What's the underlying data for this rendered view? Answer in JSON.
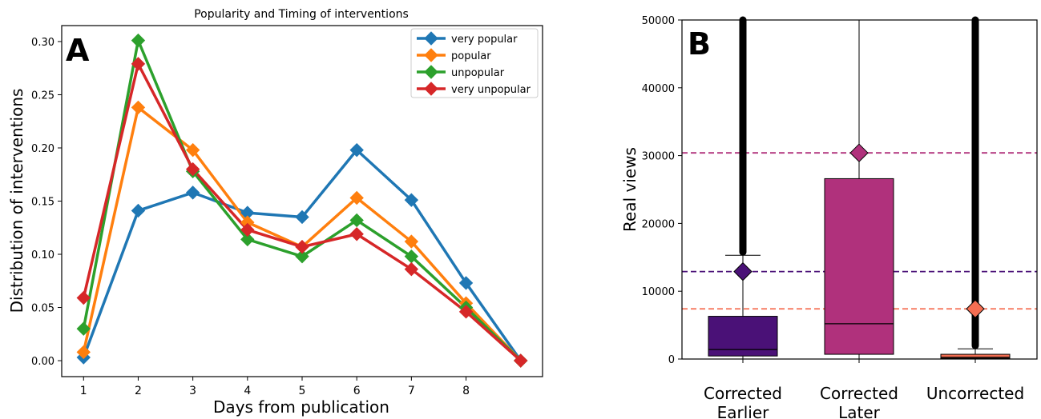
{
  "chart_data": [
    {
      "type": "line",
      "panel_label": "A",
      "title": "Popularity and Timing of interventions",
      "xlabel": "Days from publication",
      "ylabel": "Distribution of interventions",
      "x": [
        1,
        2,
        3,
        4,
        5,
        6,
        7,
        8,
        9
      ],
      "xticks": [
        "1",
        "2",
        "3",
        "4",
        "5",
        "6",
        "7",
        "8"
      ],
      "xlim": [
        0.6,
        9.4
      ],
      "ylim": [
        -0.015,
        0.315
      ],
      "yticks": [
        "0.00",
        "0.05",
        "0.10",
        "0.15",
        "0.20",
        "0.25",
        "0.30"
      ],
      "legend_position": "top-right",
      "grid": false,
      "series": [
        {
          "name": "very popular",
          "color": "#1f77b4",
          "values": [
            0.003,
            0.141,
            0.158,
            0.139,
            0.135,
            0.198,
            0.151,
            0.073,
            0.0
          ]
        },
        {
          "name": "popular",
          "color": "#ff7f0e",
          "values": [
            0.008,
            0.238,
            0.198,
            0.13,
            0.107,
            0.153,
            0.112,
            0.054,
            0.0
          ]
        },
        {
          "name": "unpopular",
          "color": "#2ca02c",
          "values": [
            0.03,
            0.301,
            0.178,
            0.114,
            0.098,
            0.132,
            0.098,
            0.05,
            0.0
          ]
        },
        {
          "name": "very unpopular",
          "color": "#d62728",
          "values": [
            0.059,
            0.279,
            0.18,
            0.123,
            0.107,
            0.119,
            0.086,
            0.046,
            0.0
          ]
        }
      ]
    },
    {
      "type": "box",
      "panel_label": "B",
      "ylabel": "Real views",
      "ylim": [
        0,
        50000
      ],
      "yticks": [
        "0",
        "10000",
        "20000",
        "30000",
        "40000",
        "50000"
      ],
      "categories": [
        [
          "Corrected",
          "Earlier"
        ],
        [
          "Corrected",
          "Later"
        ],
        [
          "Uncorrected"
        ]
      ],
      "boxes": [
        {
          "color": "#4a1177",
          "q1": 450,
          "median": 1400,
          "q3": 6300,
          "whisker_low": 0,
          "whisker_high": 15300,
          "mean": 12900,
          "outliers_from": 15300,
          "outliers_to": 50000
        },
        {
          "color": "#b0317c",
          "q1": 700,
          "median": 5200,
          "q3": 26600,
          "whisker_low": 0,
          "whisker_high": 50000,
          "mean": 30400,
          "outliers_from": null,
          "outliers_to": null
        },
        {
          "color": "#f56e52",
          "q1": 100,
          "median": 250,
          "q3": 700,
          "whisker_low": 0,
          "whisker_high": 1500,
          "mean": 7400,
          "outliers_from": 1500,
          "outliers_to": 50000
        }
      ],
      "mean_lines": [
        {
          "value": 30400,
          "color": "#b0317c"
        },
        {
          "value": 12900,
          "color": "#4a1177"
        },
        {
          "value": 7400,
          "color": "#f56e52"
        }
      ]
    }
  ]
}
